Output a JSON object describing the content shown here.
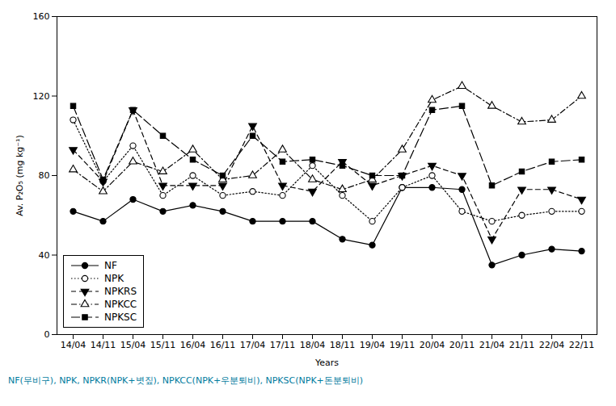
{
  "chart_data": {
    "type": "line",
    "xlabel": "Years",
    "ylabel": "Av. P₂O₅ (mg kg⁻¹)",
    "categories": [
      "14/04",
      "14/11",
      "15/04",
      "15/11",
      "16/04",
      "16/11",
      "17/04",
      "17/11",
      "18/04",
      "18/11",
      "19/04",
      "19/11",
      "20/04",
      "20/11",
      "21/04",
      "21/11",
      "22/04",
      "22/11"
    ],
    "series": [
      {
        "name": "NF",
        "color": "black",
        "marker": "circle",
        "line_style": "solid",
        "values": [
          62,
          57,
          68,
          62,
          65,
          62,
          57,
          57,
          57,
          48,
          45,
          74,
          74,
          73,
          35,
          40,
          43,
          42
        ]
      },
      {
        "name": "NPK",
        "color": "black",
        "marker": "circle-open",
        "line_style": "dotted",
        "values": [
          108,
          77,
          95,
          70,
          80,
          70,
          72,
          70,
          85,
          70,
          57,
          74,
          80,
          62,
          57,
          60,
          62,
          62
        ]
      },
      {
        "name": "NPKRS",
        "color": "black",
        "marker": "triangle-down",
        "line_style": "dashed",
        "values": [
          93,
          77,
          113,
          75,
          75,
          75,
          105,
          75,
          72,
          87,
          75,
          80,
          85,
          80,
          48,
          73,
          73,
          68
        ]
      },
      {
        "name": "NPKCC",
        "color": "black",
        "marker": "triangle-open",
        "line_style": "dashdot",
        "values": [
          83,
          72,
          87,
          82,
          93,
          78,
          80,
          93,
          78,
          73,
          78,
          93,
          118,
          125,
          115,
          107,
          108,
          120
        ]
      },
      {
        "name": "NPKSC",
        "color": "black",
        "marker": "square",
        "line_style": "longdash",
        "values": [
          115,
          78,
          113,
          100,
          88,
          80,
          100,
          87,
          88,
          85,
          80,
          80,
          113,
          115,
          75,
          82,
          87,
          88
        ]
      }
    ],
    "ylim": [
      0,
      160
    ],
    "yticks": [
      0,
      40,
      80,
      120,
      160
    ],
    "grid": false,
    "legend": "lower left",
    "footnote": "NF(무비구), NPK, NPKR(NPK+볏짚), NPKCC(NPK+우분퇴비), NPKSC(NPK+돈분퇴비)",
    "footnote_color": "#007B9E"
  }
}
